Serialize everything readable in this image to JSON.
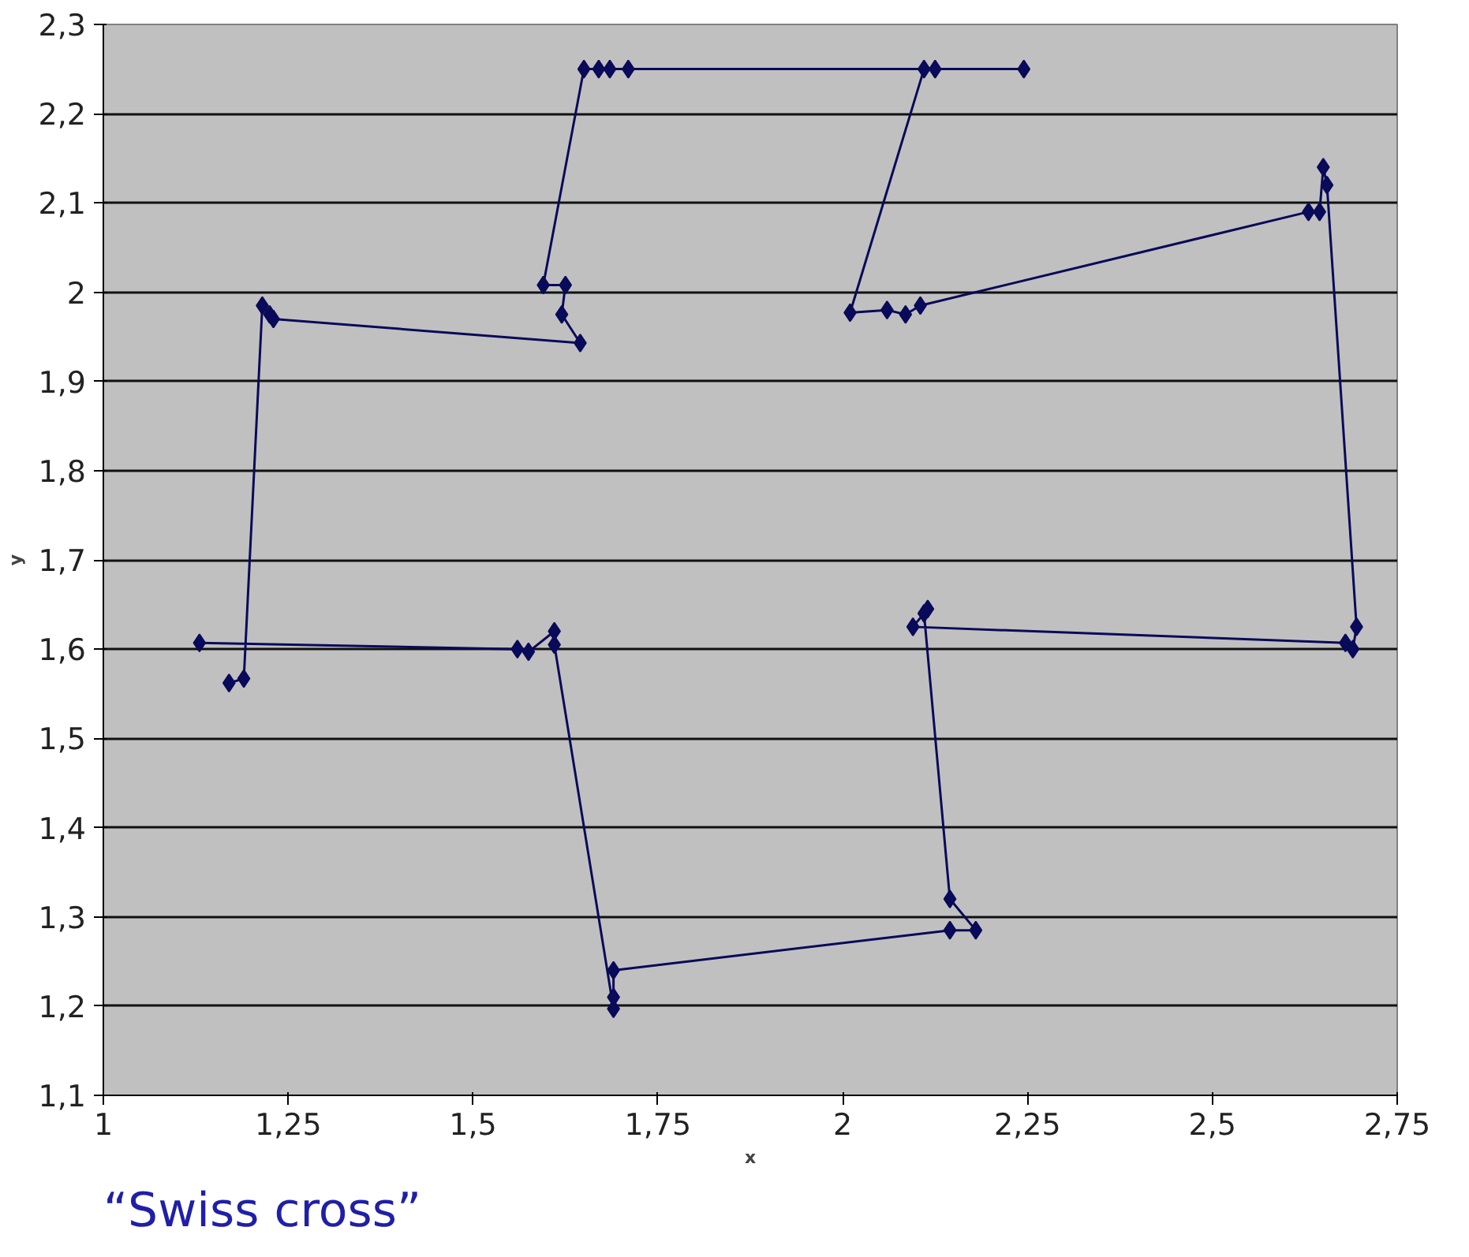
{
  "chart_data": {
    "type": "line",
    "xlabel": "x",
    "ylabel": "y",
    "annotations": [
      "“Swiss cross”"
    ],
    "marker": "diamond",
    "line_style": "solid",
    "grid": "y",
    "xlim": [
      1,
      2.75
    ],
    "ylim": [
      1.1,
      2.3
    ],
    "xticks": [
      1,
      {
        "value": 1.25,
        "label": "1,25"
      },
      {
        "value": 1.5,
        "label": "1,5"
      },
      {
        "value": 1.75,
        "label": "1,75"
      },
      2,
      {
        "value": 2.25,
        "label": "2,25"
      },
      {
        "value": 2.5,
        "label": "2,5"
      },
      {
        "value": 2.75,
        "label": "2,75"
      }
    ],
    "yticks": [
      {
        "value": 1.1,
        "label": "1,1"
      },
      {
        "value": 1.2,
        "label": "1,2"
      },
      {
        "value": 1.3,
        "label": "1,3"
      },
      {
        "value": 1.4,
        "label": "1,4"
      },
      {
        "value": 1.5,
        "label": "1,5"
      },
      {
        "value": 1.6,
        "label": "1,6"
      },
      {
        "value": 1.7,
        "label": "1,7"
      },
      {
        "value": 1.8,
        "label": "1,8"
      },
      {
        "value": 1.9,
        "label": "1,9"
      },
      2,
      {
        "value": 2.1,
        "label": "2,1"
      },
      {
        "value": 2.2,
        "label": "2,2"
      },
      {
        "value": 2.3,
        "label": "2,3"
      }
    ],
    "series": [
      {
        "color": "#0a0a5a",
        "x": [
          1.13,
          1.56,
          1.575,
          1.61,
          1.61,
          1.69,
          1.69,
          1.69,
          2.145,
          2.18,
          2.145,
          2.11,
          2.115,
          2.095,
          2.68,
          2.69,
          2.695,
          2.655,
          2.65,
          2.645,
          2.63,
          2.105,
          2.085,
          2.06,
          2.01,
          2.11,
          2.125,
          2.245,
          1.71,
          1.685,
          1.67,
          1.65,
          1.595,
          1.625,
          1.62,
          1.645,
          1.23,
          1.225,
          1.215,
          1.19,
          1.17
        ],
        "values": [
          1.607,
          1.6,
          1.597,
          1.62,
          1.605,
          1.197,
          1.21,
          1.24,
          1.285,
          1.285,
          1.32,
          1.64,
          1.645,
          1.625,
          1.607,
          1.6,
          1.625,
          2.12,
          2.14,
          2.09,
          2.09,
          1.985,
          1.975,
          1.98,
          1.977,
          2.25,
          2.25,
          2.25,
          2.25,
          2.25,
          2.25,
          2.25,
          2.008,
          2.008,
          1.975,
          1.943,
          1.97,
          1.975,
          1.985,
          1.567,
          1.562
        ]
      }
    ]
  }
}
